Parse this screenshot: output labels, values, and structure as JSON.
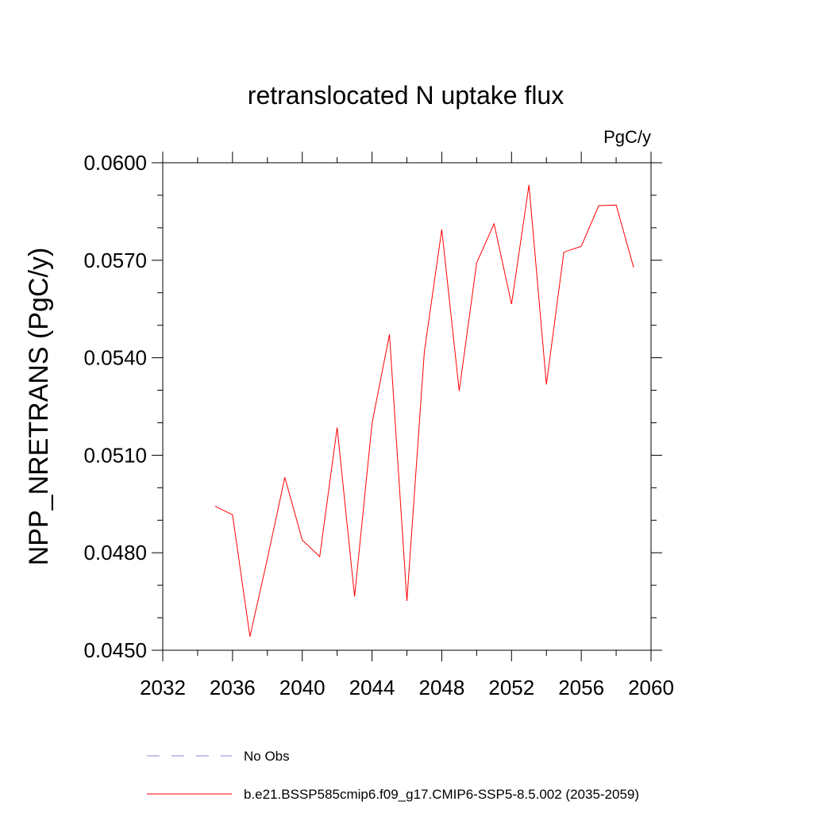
{
  "chart_data": {
    "type": "line",
    "title": "retranslocated N uptake flux",
    "units_label": "PgC/y",
    "ylabel": "NPP_NRETRANS  (PgC/y)",
    "xlabel": "",
    "xlim": [
      2032,
      2060
    ],
    "ylim": [
      0.045,
      0.06
    ],
    "x_ticks": [
      2032,
      2036,
      2040,
      2044,
      2048,
      2052,
      2056,
      2060
    ],
    "x_tick_labels": [
      "2032",
      "2036",
      "2040",
      "2044",
      "2048",
      "2052",
      "2056",
      "2060"
    ],
    "y_ticks": [
      0.045,
      0.048,
      0.051,
      0.054,
      0.057,
      0.06
    ],
    "y_tick_labels": [
      "0.0450",
      "0.0480",
      "0.0510",
      "0.0540",
      "0.0570",
      "0.0600"
    ],
    "grid": false,
    "legend_position": "bottom",
    "series": [
      {
        "name": "b.e21.BSSP585cmip6.f09_g17.CMIP6-SSP5-8.5.002 (2035-2059)",
        "color": "#ff0000",
        "style": "solid",
        "x": [
          2035,
          2036,
          2037,
          2038,
          2039,
          2040,
          2041,
          2042,
          2043,
          2044,
          2045,
          2046,
          2047,
          2048,
          2049,
          2050,
          2051,
          2052,
          2053,
          2054,
          2055,
          2056,
          2057,
          2058,
          2059
        ],
        "y": [
          0.04943,
          0.04917,
          0.04542,
          0.04782,
          0.05032,
          0.04839,
          0.04788,
          0.05185,
          0.04665,
          0.05198,
          0.05472,
          0.04652,
          0.05418,
          0.05795,
          0.05298,
          0.05692,
          0.05812,
          0.05565,
          0.05932,
          0.05318,
          0.05725,
          0.05743,
          0.05868,
          0.0587,
          0.05678
        ]
      }
    ],
    "legend": [
      {
        "label": "No Obs",
        "color": "#8a86c8",
        "style": "dashed"
      },
      {
        "label": "b.e21.BSSP585cmip6.f09_g17.CMIP6-SSP5-8.5.002 (2035-2059)",
        "color": "#ff0000",
        "style": "solid"
      }
    ]
  }
}
